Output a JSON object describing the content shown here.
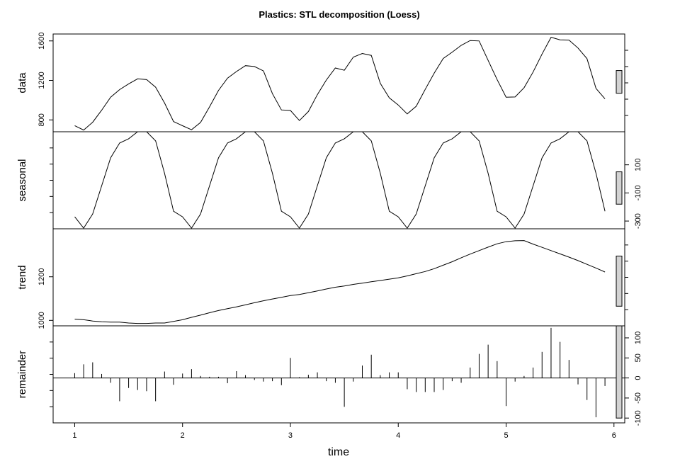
{
  "chart_data": {
    "type": "line",
    "title": "Plastics: STL decomposition (Loess)",
    "xlabel": "time",
    "xlim": [
      0.8,
      6.1
    ],
    "x_ticks": [
      1,
      2,
      3,
      4,
      5,
      6
    ],
    "x_tick_labels": [
      "1",
      "2",
      "3",
      "4",
      "5",
      "6"
    ],
    "x": [
      1.0,
      1.0833,
      1.1667,
      1.25,
      1.3333,
      1.4167,
      1.5,
      1.5833,
      1.6667,
      1.75,
      1.8333,
      1.9167,
      2.0,
      2.0833,
      2.1667,
      2.25,
      2.3333,
      2.4167,
      2.5,
      2.5833,
      2.6667,
      2.75,
      2.8333,
      2.9167,
      3.0,
      3.0833,
      3.1667,
      3.25,
      3.3333,
      3.4167,
      3.5,
      3.5833,
      3.6667,
      3.75,
      3.8333,
      3.9167,
      4.0,
      4.0833,
      4.1667,
      4.25,
      4.3333,
      4.4167,
      4.5,
      4.5833,
      4.6667,
      4.75,
      4.8333,
      4.9167,
      5.0,
      5.0833,
      5.1667,
      5.25,
      5.3333,
      5.4167,
      5.5,
      5.5833,
      5.6667,
      5.75,
      5.8333,
      5.9167
    ],
    "panels": [
      {
        "name": "data",
        "kind": "line",
        "ylim": [
          680,
          1670
        ],
        "y_ticks": [
          800,
          1200,
          1600
        ],
        "y_tick_labels": [
          "800",
          "1200",
          "1600"
        ],
        "y_axis_side": "left",
        "range_bar": [
          1070,
          1300
        ],
        "values": [
          742,
          697,
          776,
          898,
          1030,
          1107,
          1165,
          1216,
          1208,
          1131,
          971,
          783,
          741,
          700,
          774,
          932,
          1099,
          1223,
          1290,
          1349,
          1341,
          1296,
          1066,
          901,
          896,
          793,
          885,
          1055,
          1204,
          1326,
          1303,
          1436,
          1473,
          1453,
          1170,
          1023,
          951,
          861,
          938,
          1109,
          1274,
          1422,
          1486,
          1555,
          1604,
          1600,
          1403,
          1209,
          1030,
          1032,
          1126,
          1285,
          1468,
          1637,
          1611,
          1608,
          1528,
          1420,
          1119,
          1013
        ]
      },
      {
        "name": "seasonal",
        "kind": "line",
        "ylim": [
          -355,
          335
        ],
        "y_ticks": [
          -300,
          -100,
          100
        ],
        "y_tick_labels": [
          "-300",
          "-100",
          "100"
        ],
        "y_axis_side": "right",
        "range_bar": [
          -180,
          50
        ],
        "values": [
          -270,
          -350,
          -250,
          -50,
          150,
          255,
          285,
          335,
          335,
          270,
          40,
          -230,
          -270,
          -350,
          -250,
          -50,
          150,
          255,
          285,
          335,
          335,
          270,
          40,
          -230,
          -270,
          -350,
          -250,
          -50,
          150,
          255,
          285,
          335,
          335,
          270,
          40,
          -230,
          -270,
          -350,
          -250,
          -50,
          150,
          255,
          285,
          335,
          335,
          270,
          40,
          -230,
          -270,
          -350,
          -250,
          -50,
          150,
          255,
          285,
          335,
          335,
          270,
          40,
          -230
        ]
      },
      {
        "name": "trend",
        "kind": "line",
        "ylim": [
          975,
          1420
        ],
        "y_ticks": [
          1000,
          1200
        ],
        "y_tick_labels": [
          "1000",
          "1200"
        ],
        "y_axis_side": "left",
        "range_bar": [
          1065,
          1295
        ],
        "values": [
          1006,
          1003,
          997,
          994,
          992,
          992,
          988,
          986,
          986,
          988,
          988,
          995,
          1003,
          1014,
          1024,
          1035,
          1045,
          1054,
          1062,
          1071,
          1081,
          1090,
          1098,
          1106,
          1114,
          1119,
          1127,
          1135,
          1144,
          1152,
          1158,
          1165,
          1171,
          1177,
          1183,
          1189,
          1195,
          1204,
          1214,
          1224,
          1237,
          1253,
          1269,
          1287,
          1304,
          1320,
          1336,
          1351,
          1361,
          1365,
          1366,
          1350,
          1335,
          1320,
          1305,
          1290,
          1274,
          1257,
          1240,
          1222
        ]
      },
      {
        "name": "remainder",
        "kind": "bar",
        "ylim": [
          -112,
          130
        ],
        "y_ticks": [
          -100,
          -50,
          0,
          50,
          100
        ],
        "y_tick_labels": [
          "-100",
          "-50",
          "0",
          "50",
          "100"
        ],
        "y_axis_side": "right",
        "range_bar": [
          -100,
          130
        ],
        "values": [
          12,
          34,
          39,
          10,
          -12,
          -58,
          -25,
          -30,
          -33,
          -58,
          16,
          -17,
          11,
          22,
          5,
          3,
          3,
          -13,
          17,
          7,
          -5,
          -9,
          -8,
          -18,
          50,
          2,
          8,
          14,
          -8,
          -12,
          -72,
          -9,
          31,
          58,
          7,
          14,
          14,
          -28,
          -35,
          -35,
          -35,
          -30,
          -8,
          -12,
          26,
          60,
          83,
          42,
          -70,
          -9,
          5,
          26,
          65,
          125,
          90,
          45,
          -16,
          -55,
          -98,
          -20
        ]
      }
    ]
  }
}
